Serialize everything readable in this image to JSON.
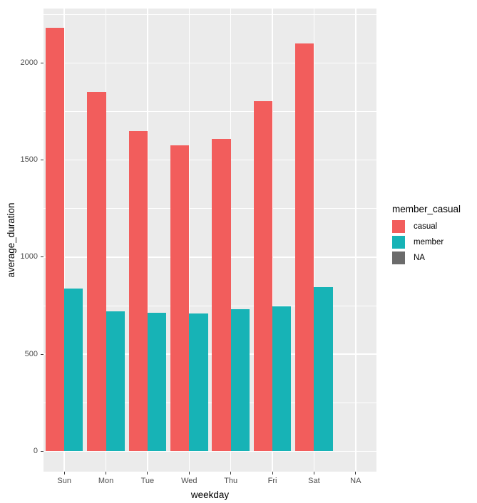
{
  "figure": {
    "background": "#FFFFFF",
    "panel_background": "#EBEBEB",
    "gridline_color": "#FFFFFF",
    "tick_mark_color": "#333333",
    "tick_label_color": "#4D4D4D",
    "axis_title_color": "#000000"
  },
  "chart_data": {
    "type": "bar",
    "grouped": true,
    "title": "",
    "xlabel": "weekday",
    "ylabel": "average_duration",
    "categories": [
      "Sun",
      "Mon",
      "Tue",
      "Wed",
      "Thu",
      "Fri",
      "Sat",
      "NA"
    ],
    "series": [
      {
        "name": "casual",
        "color": "#F25D5C",
        "values": [
          2180,
          1850,
          1650,
          1575,
          1610,
          1805,
          2100,
          null
        ]
      },
      {
        "name": "member",
        "color": "#17B3B6",
        "values": [
          840,
          720,
          715,
          710,
          730,
          745,
          845,
          null
        ]
      },
      {
        "name": "NA",
        "color": "#6B6B6B",
        "values": [
          null,
          null,
          null,
          null,
          null,
          null,
          null,
          null
        ]
      }
    ],
    "y_ticks": [
      0,
      500,
      1000,
      1500,
      2000
    ],
    "y_tick_labels": [
      "0",
      "500",
      "1000",
      "1500",
      "2000"
    ],
    "y_minor_ticks": [
      250,
      750,
      1250,
      1750,
      2250
    ],
    "ylim": [
      -105,
      2280
    ],
    "bar_dodge_width": 0.9,
    "grid": true,
    "legend_title": "member_casual",
    "legend_position": "right",
    "legend_items": [
      {
        "label": "casual",
        "color": "#F25D5C"
      },
      {
        "label": "member",
        "color": "#17B3B6"
      },
      {
        "label": "NA",
        "color": "#6B6B6B"
      }
    ]
  }
}
